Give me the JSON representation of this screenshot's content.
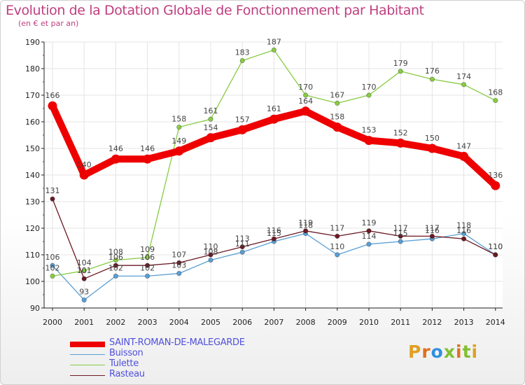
{
  "title": "Evolution de la Dotation Globale de Fonctionnement par Habitant",
  "subtitle": "(en € et par an)",
  "logo_text": "Proxiti",
  "logo_colors": [
    "#e0a020",
    "#e07020",
    "#3090e0",
    "#80c030",
    "#e07020",
    "#80c030",
    "#e0a020"
  ],
  "chart_data": {
    "type": "line",
    "title": "Evolution de la Dotation Globale de Fonctionnement par Habitant",
    "subtitle": "(en € et par an)",
    "x": [
      2000,
      2001,
      2002,
      2003,
      2004,
      2005,
      2006,
      2007,
      2008,
      2009,
      2010,
      2011,
      2012,
      2013,
      2014
    ],
    "ylim": [
      90,
      190
    ],
    "yticks": [
      90,
      100,
      110,
      120,
      130,
      140,
      150,
      160,
      170,
      180,
      190
    ],
    "grid": true,
    "legend_position": "bottom-left",
    "series": [
      {
        "name": "SAINT-ROMAN-DE-MALEGARDE",
        "color": "#ee0000",
        "bold": true,
        "values": [
          166,
          140,
          146,
          146,
          149,
          154,
          157,
          161,
          164,
          158,
          153,
          152,
          150,
          147,
          136
        ]
      },
      {
        "name": "Buisson",
        "color": "#5a9fd4",
        "bold": false,
        "values": [
          106,
          93,
          102,
          102,
          103,
          108,
          111,
          115,
          118,
          110,
          114,
          115,
          116,
          118,
          110
        ]
      },
      {
        "name": "Tulette",
        "color": "#88cc44",
        "bold": false,
        "values": [
          102,
          104,
          108,
          109,
          158,
          161,
          183,
          187,
          170,
          167,
          170,
          179,
          176,
          174,
          168
        ]
      },
      {
        "name": "Rasteau",
        "color": "#6b1a24",
        "bold": false,
        "values": [
          131,
          101,
          106,
          106,
          107,
          110,
          113,
          116,
          119,
          117,
          119,
          117,
          117,
          116,
          110
        ]
      }
    ]
  }
}
